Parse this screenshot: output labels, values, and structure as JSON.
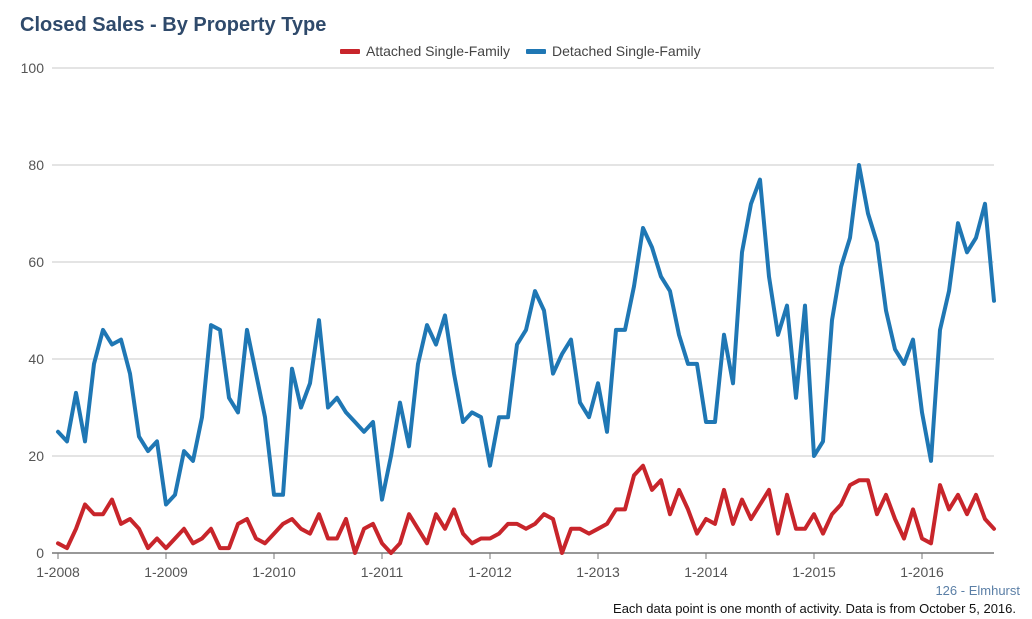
{
  "chart_data": {
    "type": "line",
    "title": "Closed Sales - By Property Type",
    "xlabel": "",
    "ylabel": "",
    "ylim": [
      0,
      100
    ],
    "yticks": [
      0,
      20,
      40,
      60,
      80,
      100
    ],
    "x_start": "2008-01",
    "xticks": [
      "1-2008",
      "1-2009",
      "1-2010",
      "1-2011",
      "1-2012",
      "1-2013",
      "1-2014",
      "1-2015",
      "1-2016"
    ],
    "grid": true,
    "legend_position": "top-center",
    "series": [
      {
        "name": "Attached Single-Family",
        "color": "#c8252b",
        "values": [
          2,
          1,
          5,
          10,
          8,
          8,
          11,
          6,
          7,
          5,
          1,
          3,
          1,
          3,
          5,
          2,
          3,
          5,
          1,
          1,
          6,
          7,
          3,
          2,
          4,
          6,
          7,
          5,
          4,
          8,
          3,
          3,
          7,
          0,
          5,
          6,
          2,
          0,
          2,
          8,
          5,
          2,
          8,
          5,
          9,
          4,
          2,
          3,
          3,
          4,
          6,
          6,
          5,
          6,
          8,
          7,
          0,
          5,
          5,
          4,
          5,
          6,
          9,
          9,
          16,
          18,
          13,
          15,
          8,
          13,
          9,
          4,
          7,
          6,
          13,
          6,
          11,
          7,
          10,
          13,
          4,
          12,
          5,
          5,
          8,
          4,
          8,
          10,
          14,
          15,
          15,
          8,
          12,
          7,
          3,
          9,
          3,
          2,
          14,
          9,
          12,
          8,
          12,
          7,
          5
        ]
      },
      {
        "name": "Detached Single-Family",
        "color": "#1f77b4",
        "values": [
          25,
          23,
          33,
          23,
          39,
          46,
          43,
          44,
          37,
          24,
          21,
          23,
          10,
          12,
          21,
          19,
          28,
          47,
          46,
          32,
          29,
          46,
          37,
          28,
          12,
          12,
          38,
          30,
          35,
          48,
          30,
          32,
          29,
          27,
          25,
          27,
          11,
          20,
          31,
          22,
          39,
          47,
          43,
          49,
          37,
          27,
          29,
          28,
          18,
          28,
          28,
          43,
          46,
          54,
          50,
          37,
          41,
          44,
          31,
          28,
          35,
          25,
          46,
          46,
          55,
          67,
          63,
          57,
          54,
          45,
          39,
          39,
          27,
          27,
          45,
          35,
          62,
          72,
          77,
          57,
          45,
          51,
          32,
          51,
          20,
          23,
          48,
          59,
          65,
          80,
          70,
          64,
          50,
          42,
          39,
          44,
          29,
          19,
          46,
          54,
          68,
          62,
          65,
          72,
          52
        ]
      }
    ]
  },
  "annotations": {
    "region": "126 - Elmhurst",
    "footnote": "Each data point is one month of activity. Data is from October 5, 2016."
  }
}
